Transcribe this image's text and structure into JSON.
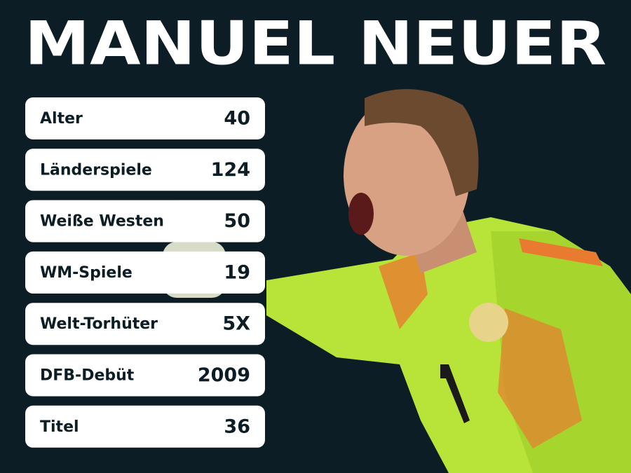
{
  "title": "MANUEL NEUER",
  "stats": [
    {
      "label": "Alter",
      "value": "40"
    },
    {
      "label": "Länderspiele",
      "value": "124"
    },
    {
      "label": "Weiße Westen",
      "value": "50"
    },
    {
      "label": "WM-Spiele",
      "value": "19"
    },
    {
      "label": "Welt-Torhüter",
      "value": "5X"
    },
    {
      "label": "DFB-Debüt",
      "value": "2009"
    },
    {
      "label": "Titel",
      "value": "36"
    }
  ]
}
